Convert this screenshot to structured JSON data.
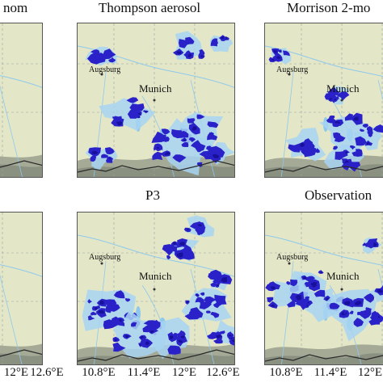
{
  "panels": [
    {
      "id": "left-top",
      "title": "nom"
    },
    {
      "id": "middle-top",
      "title": "Thompson aerosol"
    },
    {
      "id": "right-top",
      "title": "Morrison 2-mo"
    },
    {
      "id": "left-bottom",
      "title": ""
    },
    {
      "id": "middle-bottom",
      "title": "P3"
    },
    {
      "id": "right-bottom",
      "title": "Observation"
    }
  ],
  "cities": {
    "augsburg": "Augsburg",
    "munich": "Munich"
  },
  "x_ticks": {
    "left": [
      "12°E",
      "12.6°E"
    ],
    "middle": [
      "10.8°E",
      "11.4°E",
      "12°E",
      "12.6°E"
    ],
    "right": [
      "10.8°E",
      "11.4°E",
      "12°E"
    ]
  },
  "colors": {
    "terrain": "#e3e7c7",
    "alps": "#8f9686",
    "water": "#8fc8ec",
    "precip_light": "#a8d4f2",
    "precip_heavy": "#2a22c8",
    "precip_core": "#16109a",
    "border": "#2a2a2a"
  }
}
